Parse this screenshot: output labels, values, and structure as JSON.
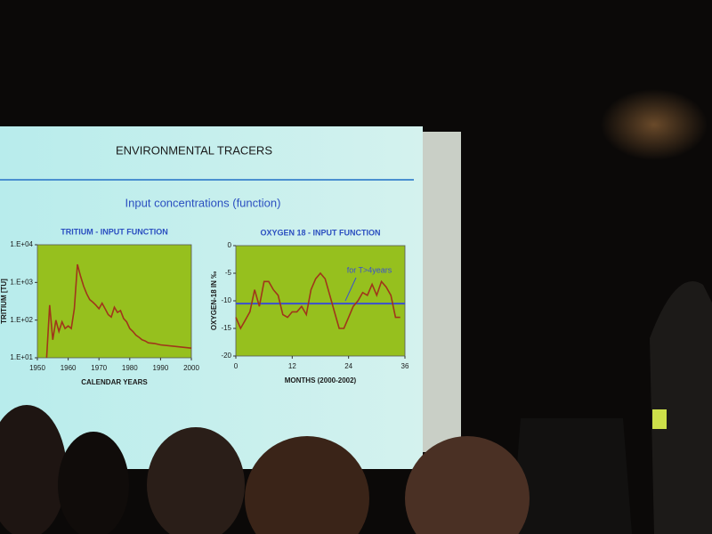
{
  "slide": {
    "title": "ENVIRONMENTAL TRACERS",
    "subtitle": "Input concentrations (function)"
  },
  "chart_data": [
    {
      "type": "line",
      "title": "TRITIUM - INPUT FUNCTION",
      "x_label": "CALENDAR YEARS",
      "y_label": "TRITIUM [TU]",
      "log_y": true,
      "color": "#a0361a",
      "plot_color": "#96c01e",
      "x": [
        1953,
        1954,
        1955,
        1956,
        1957,
        1958,
        1959,
        1960,
        1961,
        1962,
        1963,
        1964,
        1965,
        1966,
        1967,
        1968,
        1969,
        1970,
        1971,
        1972,
        1973,
        1974,
        1975,
        1976,
        1977,
        1978,
        1979,
        1980,
        1981,
        1982,
        1983,
        1984,
        1985,
        1986,
        1988,
        1990,
        1995,
        2000
      ],
      "values": [
        10,
        250,
        30,
        100,
        50,
        90,
        60,
        70,
        60,
        200,
        3000,
        1500,
        800,
        500,
        350,
        300,
        250,
        200,
        280,
        200,
        140,
        120,
        220,
        160,
        180,
        110,
        90,
        60,
        50,
        40,
        35,
        30,
        28,
        25,
        24,
        22,
        20,
        18
      ],
      "xlim": [
        1950,
        2000
      ],
      "xticks": [
        1950,
        1960,
        1970,
        1980,
        1990,
        2000
      ],
      "ylim": [
        10,
        10000
      ],
      "yticks": [
        {
          "value": 10,
          "label": "1.E+01"
        },
        {
          "value": 100,
          "label": "1.E+02"
        },
        {
          "value": 1000,
          "label": "1.E+03"
        },
        {
          "value": 10000,
          "label": "1.E+04"
        }
      ]
    },
    {
      "type": "line",
      "title": "OXYGEN 18 - INPUT FUNCTION",
      "x_label": "MONTHS (2000-2002)",
      "y_label": "OXYGEN-18 IN ‰",
      "log_y": false,
      "color": "#a0361a",
      "plot_color": "#96c01e",
      "x": [
        0,
        1,
        2,
        3,
        4,
        5,
        6,
        7,
        8,
        9,
        10,
        11,
        12,
        13,
        14,
        15,
        16,
        17,
        18,
        19,
        20,
        21,
        22,
        23,
        24,
        25,
        26,
        27,
        28,
        29,
        30,
        31,
        32,
        33,
        34,
        35
      ],
      "values": [
        -13,
        -15,
        -13.5,
        -12,
        -8,
        -11,
        -6.5,
        -6.5,
        -8,
        -9,
        -12.5,
        -13,
        -12,
        -12,
        -11,
        -12.5,
        -8,
        -6,
        -5,
        -6,
        -9,
        -12,
        -15,
        -15,
        -13,
        -11,
        -10,
        -8.5,
        -9,
        -7,
        -9,
        -6.5,
        -7.5,
        -9,
        -13,
        -13
      ],
      "reference_line": {
        "value": -10.5,
        "label": "for T>4years",
        "color": "#3a4fd0"
      },
      "xlim": [
        0,
        36
      ],
      "xticks": [
        0,
        12,
        24,
        36
      ],
      "ylim": [
        -20,
        0
      ],
      "yticks": [
        0,
        -5,
        -10,
        -15,
        -20
      ]
    }
  ]
}
